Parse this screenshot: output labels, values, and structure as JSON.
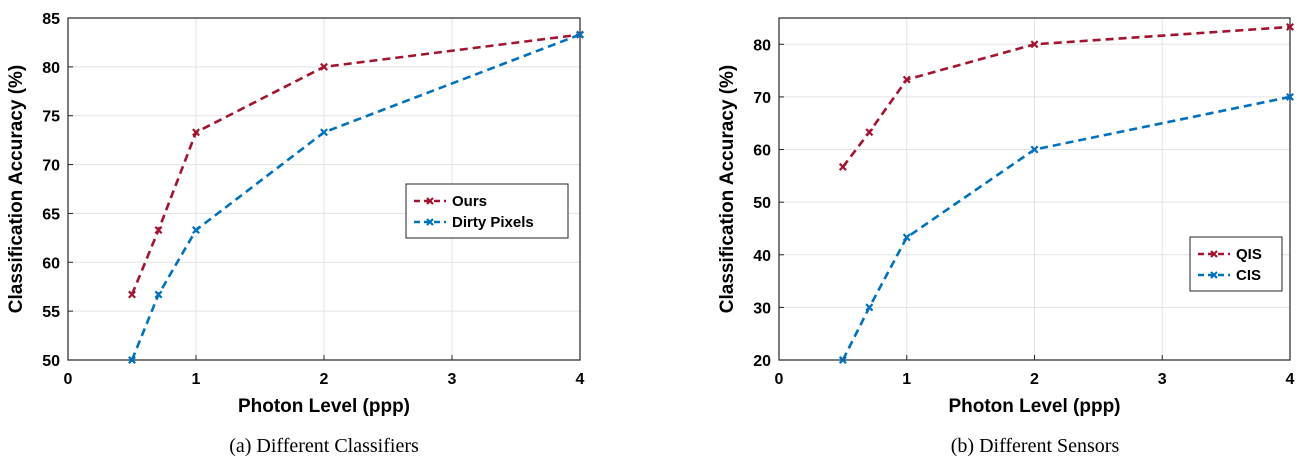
{
  "chart_data": [
    {
      "type": "line",
      "caption": "(a) Different Classifiers",
      "xlabel": "Photon Level (ppp)",
      "ylabel": "Classification Accuracy (%)",
      "x_ticks": [
        "0",
        "1",
        "2",
        "3",
        "4"
      ],
      "y_ticks": [
        "50",
        "55",
        "60",
        "65",
        "70",
        "75",
        "80",
        "85"
      ],
      "ylim": [
        50,
        85
      ],
      "x_scale": "square-root",
      "grid": true,
      "legend_position": "center-right",
      "x": [
        0.25,
        0.5,
        1,
        2,
        4
      ],
      "series": [
        {
          "name": "Ours",
          "color": "#a2142f",
          "values": [
            56.7,
            63.3,
            73.3,
            80.0,
            83.3
          ]
        },
        {
          "name": "Dirty Pixels",
          "color": "#0072bd",
          "values": [
            50.0,
            56.7,
            63.3,
            73.3,
            83.3
          ]
        }
      ]
    },
    {
      "type": "line",
      "caption": "(b) Different Sensors",
      "xlabel": "Photon Level (ppp)",
      "ylabel": "Classification Accuracy (%)",
      "x_ticks": [
        "0",
        "1",
        "2",
        "3",
        "4"
      ],
      "y_ticks": [
        "20",
        "30",
        "40",
        "50",
        "60",
        "70",
        "80"
      ],
      "ylim": [
        20,
        85
      ],
      "x_scale": "square-root",
      "grid": true,
      "legend_position": "lower-right",
      "x": [
        0.25,
        0.5,
        1,
        2,
        4
      ],
      "series": [
        {
          "name": "QIS",
          "color": "#a2142f",
          "values": [
            56.7,
            63.3,
            73.3,
            80.0,
            83.3
          ]
        },
        {
          "name": "CIS",
          "color": "#0072bd",
          "values": [
            20.0,
            30.0,
            43.3,
            60.0,
            70.0
          ]
        }
      ]
    }
  ]
}
